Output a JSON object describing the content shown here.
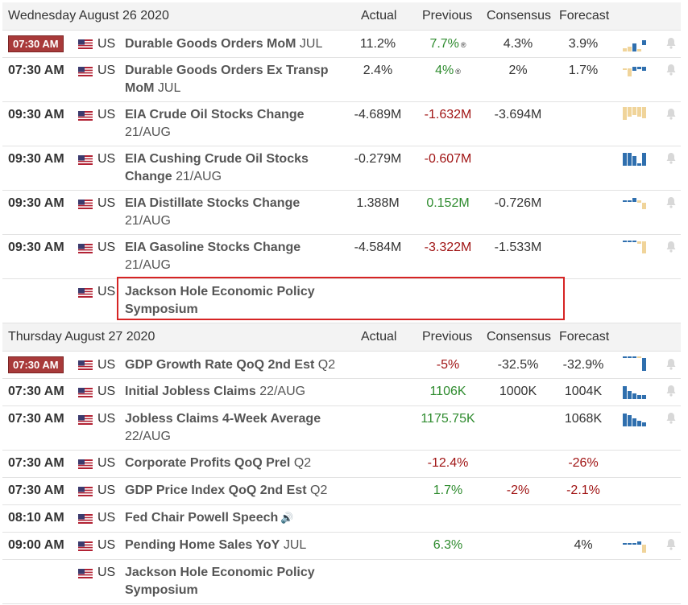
{
  "days": [
    {
      "date": "Wednesday August 26 2020",
      "headers": {
        "actual": "Actual",
        "previous": "Previous",
        "consensus": "Consensus",
        "forecast": "Forecast"
      },
      "events": [
        {
          "time": "07:30 AM",
          "live": true,
          "country": "US",
          "name": "Durable Goods Orders MoM",
          "period": "JUL",
          "actual": "11.2%",
          "previous": "7.7%",
          "previous_color": "green",
          "revised": true,
          "consensus": "4.3%",
          "forecast": "3.9%",
          "chart": "dots-blue"
        },
        {
          "time": "07:30 AM",
          "live": false,
          "country": "US",
          "name": "Durable Goods Orders Ex Transp MoM",
          "period": "JUL",
          "actual": "2.4%",
          "previous": "4%",
          "previous_color": "green",
          "revised": true,
          "consensus": "2%",
          "forecast": "1.7%",
          "chart": "dots-blue"
        },
        {
          "time": "09:30 AM",
          "live": false,
          "country": "US",
          "name": "EIA Crude Oil Stocks Change",
          "period": "21/AUG",
          "actual": "-4.689M",
          "previous": "-1.632M",
          "previous_color": "red",
          "consensus": "-3.694M",
          "forecast": "",
          "chart": "bars-tan"
        },
        {
          "time": "09:30 AM",
          "live": false,
          "country": "US",
          "name": "EIA Cushing Crude Oil Stocks Change",
          "period": "21/AUG",
          "actual": "-0.279M",
          "previous": "-0.607M",
          "previous_color": "red",
          "consensus": "",
          "forecast": "",
          "chart": "bars-blue"
        },
        {
          "time": "09:30 AM",
          "live": false,
          "country": "US",
          "name": "EIA Distillate Stocks Change",
          "period": "21/AUG",
          "actual": "1.388M",
          "previous": "0.152M",
          "previous_color": "green",
          "consensus": "-0.726M",
          "forecast": "",
          "chart": "mixed"
        },
        {
          "time": "09:30 AM",
          "live": false,
          "country": "US",
          "name": "EIA Gasoline Stocks Change",
          "period": "21/AUG",
          "actual": "-4.584M",
          "previous": "-3.322M",
          "previous_color": "red",
          "consensus": "-1.533M",
          "forecast": "",
          "chart": "mixed2"
        },
        {
          "time": "",
          "live": false,
          "country": "US",
          "name": "Jackson Hole Economic Policy Symposium",
          "period": "",
          "actual": "",
          "previous": "",
          "consensus": "",
          "forecast": "",
          "chart": "",
          "highlight": true
        }
      ]
    },
    {
      "date": "Thursday August 27 2020",
      "headers": {
        "actual": "Actual",
        "previous": "Previous",
        "consensus": "Consensus",
        "forecast": "Forecast"
      },
      "events": [
        {
          "time": "07:30 AM",
          "live": true,
          "country": "US",
          "name": "GDP Growth Rate QoQ 2nd Est",
          "period": "Q2",
          "actual": "",
          "previous": "-5%",
          "previous_color": "red",
          "consensus": "-32.5%",
          "forecast": "-32.9%",
          "chart": "lines-blue"
        },
        {
          "time": "07:30 AM",
          "live": false,
          "country": "US",
          "name": "Initial Jobless Claims",
          "period": "22/AUG",
          "actual": "",
          "previous": "1106K",
          "previous_color": "green",
          "consensus": "1000K",
          "forecast": "1004K",
          "chart": "bars-blue2"
        },
        {
          "time": "07:30 AM",
          "live": false,
          "country": "US",
          "name": "Jobless Claims 4-Week Average",
          "period": "22/AUG",
          "actual": "",
          "previous": "1175.75K",
          "previous_color": "green",
          "consensus": "",
          "forecast": "1068K",
          "chart": "bars-blue2"
        },
        {
          "time": "07:30 AM",
          "live": false,
          "country": "US",
          "name": "Corporate Profits QoQ Prel",
          "period": "Q2",
          "actual": "",
          "previous": "-12.4%",
          "previous_color": "red",
          "consensus": "",
          "forecast": "-26%",
          "forecast_color": "red",
          "chart": ""
        },
        {
          "time": "07:30 AM",
          "live": false,
          "country": "US",
          "name": "GDP Price Index QoQ 2nd Est",
          "period": "Q2",
          "actual": "",
          "previous": "1.7%",
          "previous_color": "green",
          "consensus": "-2%",
          "consensus_color": "red",
          "forecast": "-2.1%",
          "forecast_color": "red",
          "chart": ""
        },
        {
          "time": "08:10 AM",
          "live": false,
          "country": "US",
          "name": "Fed Chair Powell Speech",
          "period": "",
          "actual": "",
          "previous": "",
          "consensus": "",
          "forecast": "",
          "chart": "",
          "speaker": true
        },
        {
          "time": "09:00 AM",
          "live": false,
          "country": "US",
          "name": "Pending Home Sales YoY",
          "period": "JUL",
          "actual": "",
          "previous": "6.3%",
          "previous_color": "green",
          "consensus": "",
          "forecast": "4%",
          "chart": "lines-mixed"
        },
        {
          "time": "",
          "live": false,
          "country": "US",
          "name": "Jackson Hole Economic Policy Symposium",
          "period": "",
          "actual": "",
          "previous": "",
          "consensus": "",
          "forecast": "",
          "chart": ""
        }
      ]
    }
  ],
  "colors": {
    "live_badge": "#a83a3a",
    "positive": "#2e8b2e",
    "negative": "#a01414",
    "highlight_border": "#d62424",
    "bar_blue": "#2f6fae",
    "bar_tan": "#f0d49a"
  }
}
